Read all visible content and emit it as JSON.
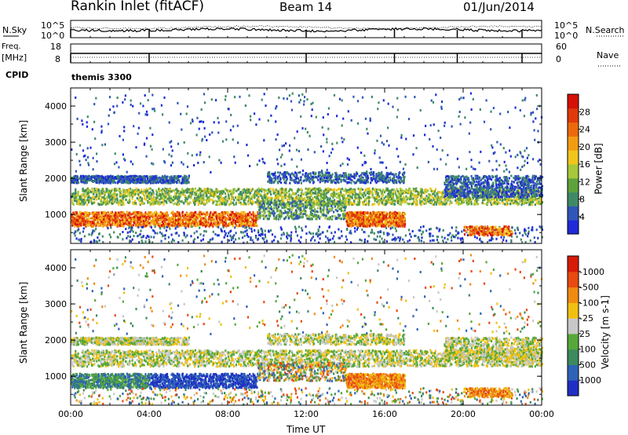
{
  "header": {
    "station": "Rankin Inlet (fitACF)",
    "beam": "Beam 14",
    "date": "01/Jun/2014"
  },
  "top_panels": {
    "nsky_label": "N.Sky",
    "nsky_ticks": [
      "10^5",
      "10^0"
    ],
    "nsearch_label": "N.Search",
    "nsearch_ticks": [
      "10^5",
      "10^0"
    ],
    "freq_label": "Freq.",
    "freq_unit": "[MHz]",
    "freq_ticks": [
      "18",
      "8"
    ],
    "nave_label": "Nave",
    "nave_ticks": [
      "60",
      "0"
    ],
    "cpid_label": "CPID",
    "cpid_value": "themis 3300"
  },
  "chart_data": [
    {
      "type": "heatmap",
      "name": "power",
      "ylabel": "Slant Range [km]",
      "yticks": [
        "1000",
        "2000",
        "3000",
        "4000"
      ],
      "ylim": [
        200,
        4500
      ],
      "xlim": [
        "00:00",
        "24:00"
      ],
      "colorbar_label": "Power [dB]",
      "colorbar_ticks": [
        "4",
        "8",
        "12",
        "16",
        "20",
        "24",
        "28"
      ],
      "colors": [
        "#1f2bd8",
        "#2f56b8",
        "#3f8a66",
        "#5da23c",
        "#a6c83a",
        "#f0c51c",
        "#f39c12",
        "#ec6a0c",
        "#e03a0a",
        "#d61005"
      ]
    },
    {
      "type": "heatmap",
      "name": "velocity",
      "ylabel": "Slant Range [km]",
      "yticks": [
        "1000",
        "2000",
        "3000",
        "4000"
      ],
      "ylim": [
        200,
        4500
      ],
      "xlim": [
        "00:00",
        "24:00"
      ],
      "colorbar_label": "Velocity [m s-1]",
      "colorbar_ticks": [
        "1000",
        "500",
        "100",
        "25",
        "-25",
        "-100",
        "-500",
        "-1000"
      ],
      "colors": [
        "#1f2fc4",
        "#2d63b6",
        "#3c8a5e",
        "#56a83a",
        "#c8c8c8",
        "#f0c010",
        "#ef8a12",
        "#e84a10",
        "#d81a08"
      ]
    }
  ],
  "xaxis": {
    "ticks": [
      "00:00",
      "04:00",
      "08:00",
      "12:00",
      "16:00",
      "20:00",
      "00:00"
    ],
    "label": "Time UT"
  }
}
